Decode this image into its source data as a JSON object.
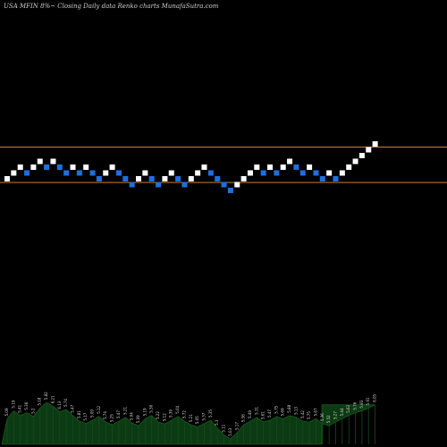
{
  "chart_data": {
    "type": "renko",
    "title": "USA MFIN  8%~  Closing Daily data  Renko  charts MunafaSutra.com",
    "colors": {
      "up": "#ffffff",
      "down": "#1e6fe0",
      "reference_line": "#c8822a",
      "volume": "#0c3a12",
      "background": "#000000"
    },
    "ylim": [
      0,
      1
    ],
    "reference_lines": [
      0.25,
      0.31
    ],
    "bricks": [
      {
        "dir": "up",
        "level": 0
      },
      {
        "dir": "up",
        "level": 1
      },
      {
        "dir": "up",
        "level": 2
      },
      {
        "dir": "down",
        "level": 1
      },
      {
        "dir": "up",
        "level": 2
      },
      {
        "dir": "up",
        "level": 3
      },
      {
        "dir": "down",
        "level": 2
      },
      {
        "dir": "up",
        "level": 3
      },
      {
        "dir": "down",
        "level": 2
      },
      {
        "dir": "down",
        "level": 1
      },
      {
        "dir": "up",
        "level": 2
      },
      {
        "dir": "down",
        "level": 1
      },
      {
        "dir": "up",
        "level": 2
      },
      {
        "dir": "down",
        "level": 1
      },
      {
        "dir": "down",
        "level": 0
      },
      {
        "dir": "up",
        "level": 1
      },
      {
        "dir": "up",
        "level": 2
      },
      {
        "dir": "down",
        "level": 1
      },
      {
        "dir": "down",
        "level": 0
      },
      {
        "dir": "down",
        "level": -1
      },
      {
        "dir": "up",
        "level": 0
      },
      {
        "dir": "up",
        "level": 1
      },
      {
        "dir": "down",
        "level": 0
      },
      {
        "dir": "down",
        "level": -1
      },
      {
        "dir": "up",
        "level": 0
      },
      {
        "dir": "up",
        "level": 1
      },
      {
        "dir": "down",
        "level": 0
      },
      {
        "dir": "down",
        "level": -1
      },
      {
        "dir": "up",
        "level": 0
      },
      {
        "dir": "up",
        "level": 1
      },
      {
        "dir": "up",
        "level": 2
      },
      {
        "dir": "down",
        "level": 1
      },
      {
        "dir": "down",
        "level": 0
      },
      {
        "dir": "down",
        "level": -1
      },
      {
        "dir": "down",
        "level": -2
      },
      {
        "dir": "up",
        "level": -1
      },
      {
        "dir": "up",
        "level": 0
      },
      {
        "dir": "up",
        "level": 1
      },
      {
        "dir": "up",
        "level": 2
      },
      {
        "dir": "down",
        "level": 1
      },
      {
        "dir": "up",
        "level": 2
      },
      {
        "dir": "down",
        "level": 1
      },
      {
        "dir": "up",
        "level": 2
      },
      {
        "dir": "up",
        "level": 3
      },
      {
        "dir": "down",
        "level": 2
      },
      {
        "dir": "down",
        "level": 1
      },
      {
        "dir": "up",
        "level": 2
      },
      {
        "dir": "down",
        "level": 1
      },
      {
        "dir": "down",
        "level": 0
      },
      {
        "dir": "up",
        "level": 1
      },
      {
        "dir": "down",
        "level": 0
      },
      {
        "dir": "up",
        "level": 1
      },
      {
        "dir": "up",
        "level": 2
      },
      {
        "dir": "up",
        "level": 3
      },
      {
        "dir": "up",
        "level": 4
      },
      {
        "dir": "up",
        "level": 5
      },
      {
        "dir": "up",
        "level": 6
      }
    ],
    "volume": [
      0.55,
      0.72,
      0.62,
      0.68,
      0.6,
      0.78,
      0.9,
      0.82,
      0.7,
      0.75,
      0.62,
      0.5,
      0.45,
      0.52,
      0.6,
      0.48,
      0.42,
      0.5,
      0.58,
      0.46,
      0.4,
      0.55,
      0.62,
      0.48,
      0.44,
      0.52,
      0.6,
      0.5,
      0.42,
      0.38,
      0.45,
      0.52,
      0.35,
      0.2,
      0.12,
      0.25,
      0.42,
      0.5,
      0.58,
      0.48,
      0.52,
      0.6,
      0.55,
      0.62,
      0.58,
      0.5,
      0.48,
      0.55,
      0.44,
      0.4,
      0.48,
      0.55,
      0.62,
      0.68,
      0.72,
      0.78,
      0.85
    ],
    "volume_labels": [
      "5.09",
      "5.19",
      "5.41",
      "5.36",
      "5.2",
      "5.18",
      "5.82",
      "6.21",
      "6.13",
      "5.74",
      "5.47",
      "5.81",
      "5.17",
      "5.09",
      "5.12",
      "5.74",
      "5.25",
      "5.47",
      "5.21",
      "5.04",
      "5.09",
      "5.19",
      "5.36",
      "5.22",
      "5.12",
      "5.39",
      "5.04",
      "5.72",
      "5.21",
      "5.05",
      "5.37",
      "5.35",
      "5.3",
      "5.11",
      "5.03",
      "5.17",
      "5.36",
      "5.49",
      "5.31",
      "5.61",
      "5.47",
      "5.75",
      "5.69",
      "5.88",
      "5.13",
      "5.42",
      "5.75",
      "5.67",
      "5.36",
      "5.52",
      "5.27",
      "5.44",
      "5.62",
      "5.76",
      "5.83",
      "5.91",
      "6.05"
    ]
  }
}
